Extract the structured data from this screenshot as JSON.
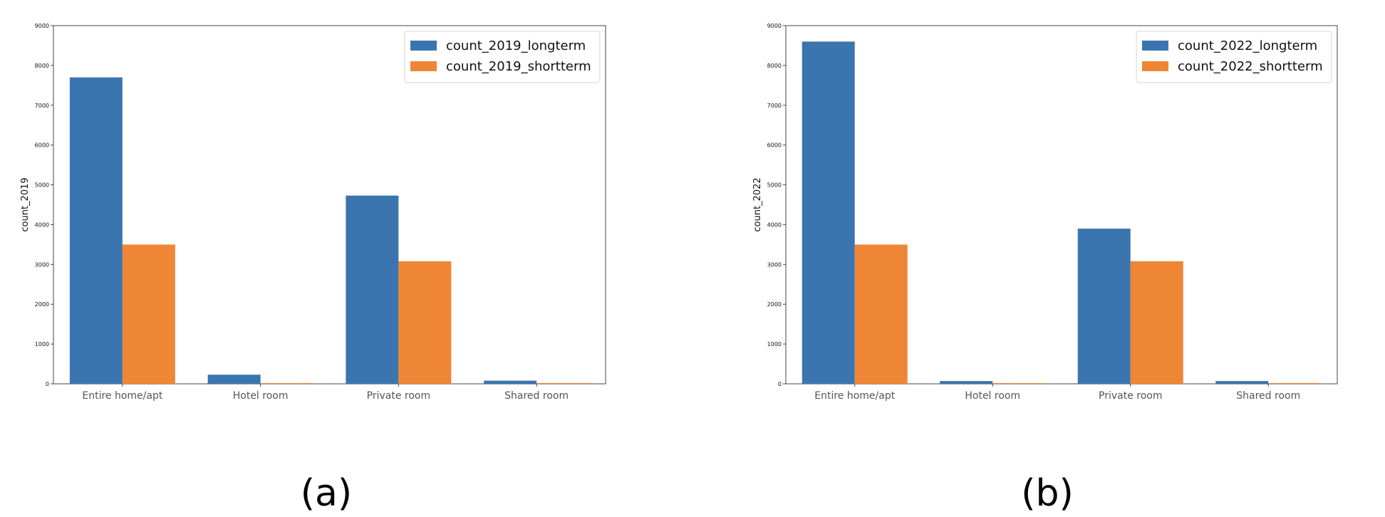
{
  "figure": {
    "panel_labels": [
      "(a)",
      "(b)"
    ]
  },
  "colors": {
    "longterm": "#3b75af",
    "shortterm": "#ef8636",
    "axis": "#444444",
    "text": "#111111",
    "tick_text": "#555555"
  },
  "chart_data": [
    {
      "type": "bar",
      "title": "",
      "xlabel": "",
      "ylabel": "count_2019",
      "categories": [
        "Entire home/apt",
        "Hotel room",
        "Private room",
        "Shared room"
      ],
      "series": [
        {
          "name": "count_2019_longterm",
          "values": [
            7700,
            230,
            4730,
            80
          ]
        },
        {
          "name": "count_2019_shortterm",
          "values": [
            3500,
            15,
            3080,
            20
          ]
        }
      ],
      "ylim": [
        0,
        9000
      ],
      "yticks": [
        0,
        1000,
        2000,
        3000,
        4000,
        5000,
        6000,
        7000,
        8000,
        9000
      ],
      "legend": "top-right",
      "grid": false
    },
    {
      "type": "bar",
      "title": "",
      "xlabel": "",
      "ylabel": "count_2022",
      "categories": [
        "Entire home/apt",
        "Hotel room",
        "Private room",
        "Shared room"
      ],
      "series": [
        {
          "name": "count_2022_longterm",
          "values": [
            8600,
            70,
            3900,
            70
          ]
        },
        {
          "name": "count_2022_shortterm",
          "values": [
            3500,
            15,
            3080,
            20
          ]
        }
      ],
      "ylim": [
        0,
        9000
      ],
      "yticks": [
        0,
        1000,
        2000,
        3000,
        4000,
        5000,
        6000,
        7000,
        8000,
        9000
      ],
      "legend": "top-right",
      "grid": false
    }
  ]
}
